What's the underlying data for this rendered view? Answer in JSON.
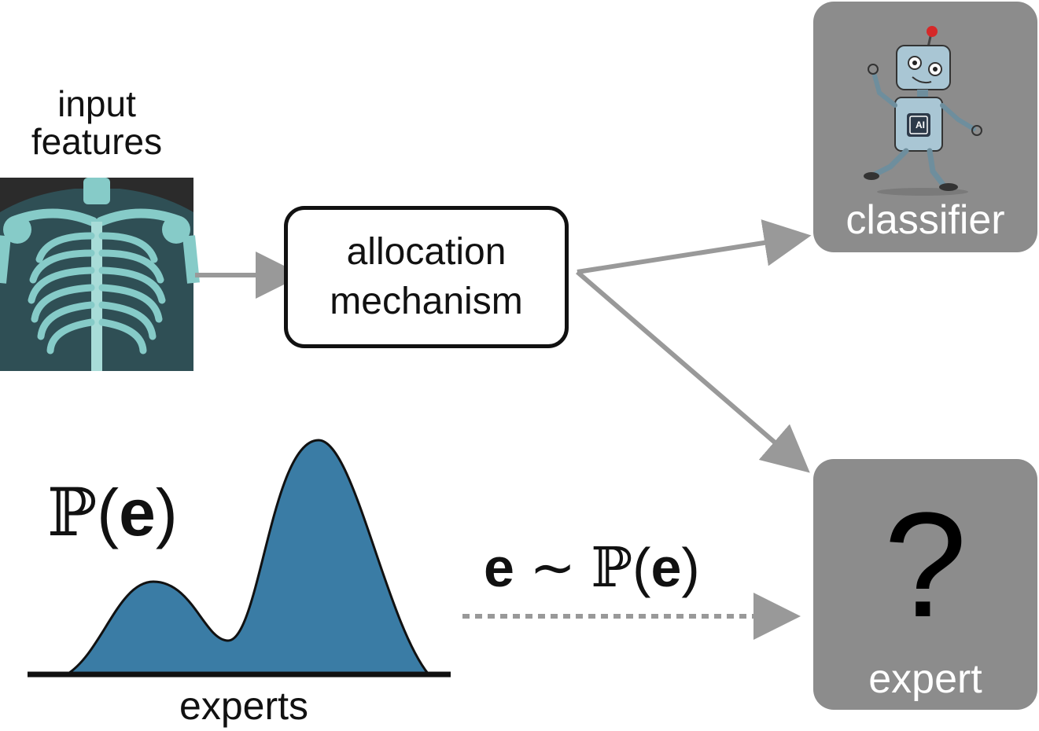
{
  "input": {
    "line1": "input",
    "line2": "features"
  },
  "allocation": {
    "line1": "allocation",
    "line2": "mechanism"
  },
  "classifier": {
    "label": "classifier",
    "chip_text": "AI"
  },
  "expert": {
    "label": "expert",
    "unknown_symbol": "?"
  },
  "distribution": {
    "label_symbol": "ℙ",
    "label_arg": "e",
    "axis_label": "experts",
    "fill_color": "#3a7ca5"
  },
  "sampling": {
    "var": "e",
    "relation": "∼",
    "symbol": "ℙ",
    "arg": "e"
  },
  "colors": {
    "arrow": "#999999",
    "box_gray": "#8c8c8c",
    "xray_bg": "#2b2b2b",
    "xray_bone": "#86cbc8"
  }
}
